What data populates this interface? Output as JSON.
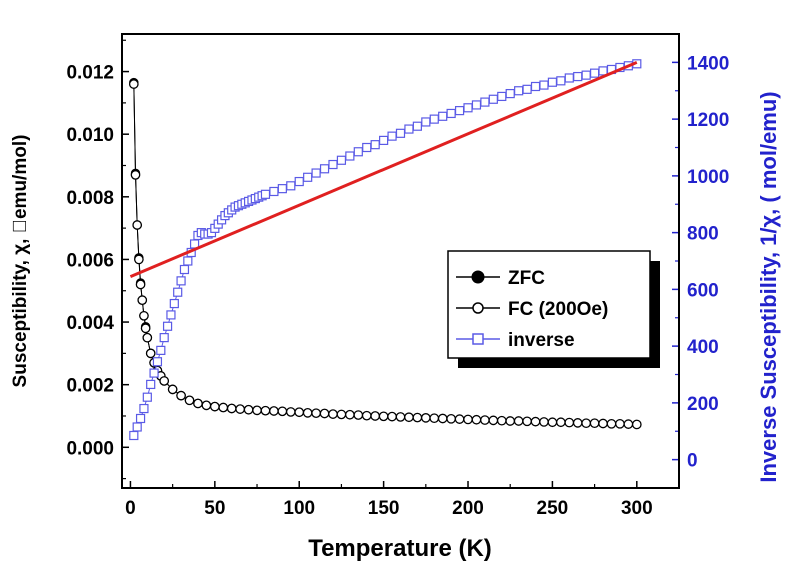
{
  "colors": {
    "left_axis": "#000000",
    "right_axis": "#2222cc",
    "inverse_series": "#5a5ae6",
    "fit_line": "#e02020"
  },
  "chart_data": {
    "type": "scatter",
    "title": "",
    "xlabel": "Temperature (K)",
    "ylabel": "Susceptibility, χ, \u0000emu/mol)",
    "y2label": "Inverse Susceptibility, 1/χ, ( mol/emu)",
    "xlim": [
      -5,
      325
    ],
    "ylim": [
      -0.0013,
      0.0132
    ],
    "y2lim": [
      -100,
      1500
    ],
    "x_ticks": [
      "0",
      "50",
      "100",
      "150",
      "200",
      "250",
      "300"
    ],
    "y_ticks": [
      "0.000",
      "0.002",
      "0.004",
      "0.006",
      "0.008",
      "0.010",
      "0.012"
    ],
    "y2_ticks": [
      "0",
      "200",
      "400",
      "600",
      "800",
      "1000",
      "1200",
      "1400"
    ],
    "grid": false,
    "legend": {
      "placement": "center-right",
      "entries": [
        "ZFC",
        "FC (200Oe)",
        "inverse"
      ]
    },
    "series": [
      {
        "name": "ZFC",
        "axis": "left",
        "marker": "filled-circle",
        "x": [
          2,
          3,
          4,
          5,
          6,
          7,
          8,
          9,
          10,
          12,
          14,
          16,
          18,
          20,
          25,
          30,
          35,
          40,
          45,
          50,
          60,
          70,
          80,
          90,
          100
        ],
        "y": [
          0.01165,
          0.00875,
          0.0071,
          0.00605,
          0.00525,
          0.0047,
          0.0042,
          0.00385,
          0.0035,
          0.003,
          0.0027,
          0.00245,
          0.00228,
          0.00212,
          0.00185,
          0.00165,
          0.0015,
          0.0014,
          0.00134,
          0.0013,
          0.00124,
          0.0012,
          0.00117,
          0.00115,
          0.00112
        ]
      },
      {
        "name": "FC (200Oe)",
        "axis": "left",
        "marker": "open-circle",
        "x": [
          2,
          3,
          4,
          5,
          6,
          7,
          8,
          9,
          10,
          12,
          14,
          16,
          18,
          20,
          25,
          30,
          35,
          40,
          45,
          50,
          55,
          60,
          65,
          70,
          75,
          80,
          85,
          90,
          95,
          100,
          105,
          110,
          115,
          120,
          125,
          130,
          135,
          140,
          145,
          150,
          155,
          160,
          165,
          170,
          175,
          180,
          185,
          190,
          195,
          200,
          205,
          210,
          215,
          220,
          225,
          230,
          235,
          240,
          245,
          250,
          255,
          260,
          265,
          270,
          275,
          280,
          285,
          290,
          295,
          300
        ],
        "y": [
          0.0116,
          0.0087,
          0.0071,
          0.006,
          0.0052,
          0.0047,
          0.0042,
          0.0038,
          0.0035,
          0.003,
          0.0027,
          0.00245,
          0.00228,
          0.00212,
          0.00185,
          0.00165,
          0.0015,
          0.0014,
          0.00134,
          0.0013,
          0.00127,
          0.00124,
          0.00122,
          0.0012,
          0.00118,
          0.00117,
          0.00116,
          0.00115,
          0.00113,
          0.00112,
          0.0011,
          0.00109,
          0.00108,
          0.00106,
          0.00105,
          0.00104,
          0.00103,
          0.00101,
          0.001,
          0.00099,
          0.00098,
          0.00097,
          0.00096,
          0.00095,
          0.00094,
          0.00093,
          0.00092,
          0.00091,
          0.0009,
          0.00089,
          0.00088,
          0.00087,
          0.00086,
          0.00085,
          0.00084,
          0.00084,
          0.00083,
          0.00082,
          0.00081,
          0.0008,
          0.0008,
          0.00079,
          0.00078,
          0.00077,
          0.00077,
          0.00076,
          0.00075,
          0.00075,
          0.00074,
          0.00073
        ]
      },
      {
        "name": "inverse",
        "axis": "right",
        "marker": "open-square",
        "x": [
          2,
          4,
          6,
          8,
          10,
          12,
          14,
          16,
          18,
          20,
          22,
          24,
          26,
          28,
          30,
          32,
          34,
          36,
          38,
          40,
          42,
          44,
          46,
          48,
          50,
          52,
          54,
          56,
          58,
          60,
          62,
          64,
          66,
          68,
          70,
          72,
          74,
          76,
          78,
          80,
          85,
          90,
          95,
          100,
          105,
          110,
          115,
          120,
          125,
          130,
          135,
          140,
          145,
          150,
          155,
          160,
          165,
          170,
          175,
          180,
          185,
          190,
          195,
          200,
          205,
          210,
          215,
          220,
          225,
          230,
          235,
          240,
          245,
          250,
          255,
          260,
          265,
          270,
          275,
          280,
          285,
          290,
          295,
          300
        ],
        "y": [
          85,
          115,
          145,
          180,
          220,
          265,
          305,
          345,
          385,
          430,
          470,
          510,
          550,
          590,
          630,
          670,
          700,
          730,
          760,
          790,
          800,
          795,
          795,
          800,
          815,
          830,
          845,
          860,
          870,
          880,
          890,
          895,
          900,
          905,
          910,
          915,
          920,
          925,
          930,
          935,
          945,
          955,
          965,
          980,
          995,
          1010,
          1025,
          1040,
          1055,
          1070,
          1085,
          1100,
          1110,
          1125,
          1140,
          1150,
          1165,
          1175,
          1190,
          1200,
          1210,
          1220,
          1230,
          1240,
          1250,
          1260,
          1270,
          1280,
          1290,
          1300,
          1305,
          1315,
          1320,
          1330,
          1335,
          1345,
          1350,
          1355,
          1362,
          1370,
          1375,
          1382,
          1388,
          1395
        ]
      }
    ],
    "fit_line": {
      "axis": "right",
      "x": [
        0,
        300
      ],
      "y": [
        645,
        1400
      ]
    }
  }
}
